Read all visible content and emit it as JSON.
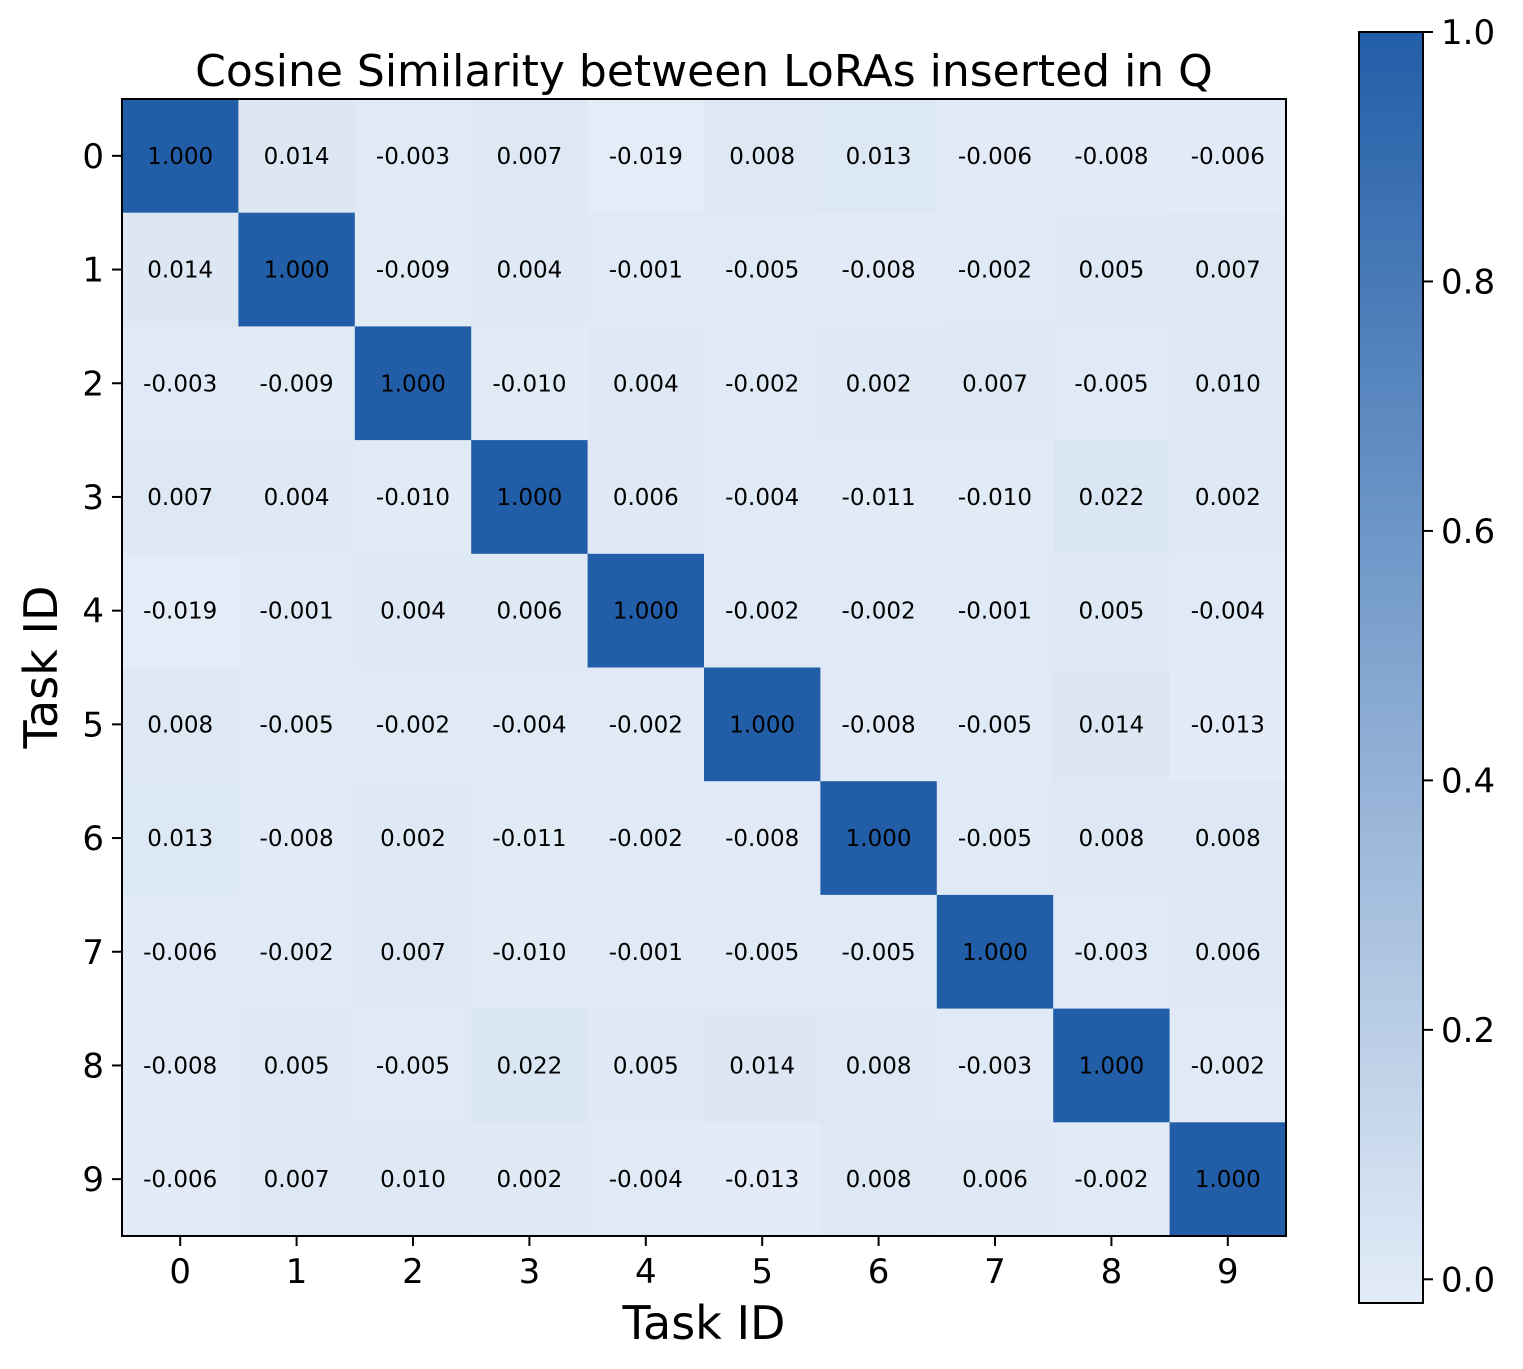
{
  "chart_data": {
    "type": "heatmap",
    "title": "Cosine Similarity between LoRAs inserted in Q",
    "xlabel": "Task ID",
    "ylabel": "Task ID",
    "x_categories": [
      "0",
      "1",
      "2",
      "3",
      "4",
      "5",
      "6",
      "7",
      "8",
      "9"
    ],
    "y_categories": [
      "0",
      "1",
      "2",
      "3",
      "4",
      "5",
      "6",
      "7",
      "8",
      "9"
    ],
    "values": [
      [
        1.0,
        0.014,
        -0.003,
        0.007,
        -0.019,
        0.008,
        0.013,
        -0.006,
        -0.008,
        -0.006
      ],
      [
        0.014,
        1.0,
        -0.009,
        0.004,
        -0.001,
        -0.005,
        -0.008,
        -0.002,
        0.005,
        0.007
      ],
      [
        -0.003,
        -0.009,
        1.0,
        -0.01,
        0.004,
        -0.002,
        0.002,
        0.007,
        -0.005,
        0.01
      ],
      [
        0.007,
        0.004,
        -0.01,
        1.0,
        0.006,
        -0.004,
        -0.011,
        -0.01,
        0.022,
        0.002
      ],
      [
        -0.019,
        -0.001,
        0.004,
        0.006,
        1.0,
        -0.002,
        -0.002,
        -0.001,
        0.005,
        -0.004
      ],
      [
        0.008,
        -0.005,
        -0.002,
        -0.004,
        -0.002,
        1.0,
        -0.008,
        -0.005,
        0.014,
        -0.013
      ],
      [
        0.013,
        -0.008,
        0.002,
        -0.011,
        -0.002,
        -0.008,
        1.0,
        -0.005,
        0.008,
        0.008
      ],
      [
        -0.006,
        -0.002,
        0.007,
        -0.01,
        -0.001,
        -0.005,
        -0.005,
        1.0,
        -0.003,
        0.006
      ],
      [
        -0.008,
        0.005,
        -0.005,
        0.022,
        0.005,
        0.014,
        0.008,
        -0.003,
        1.0,
        -0.002
      ],
      [
        -0.006,
        0.007,
        0.01,
        0.002,
        -0.004,
        -0.013,
        0.008,
        0.006,
        -0.002,
        1.0
      ]
    ],
    "cell_labels": [
      [
        "1.000",
        "0.014",
        "-0.003",
        "0.007",
        "-0.019",
        "0.008",
        "0.013",
        "-0.006",
        "-0.008",
        "-0.006"
      ],
      [
        "0.014",
        "1.000",
        "-0.009",
        "0.004",
        "-0.001",
        "-0.005",
        "-0.008",
        "-0.002",
        "0.005",
        "0.007"
      ],
      [
        "-0.003",
        "-0.009",
        "1.000",
        "-0.010",
        "0.004",
        "-0.002",
        "0.002",
        "0.007",
        "-0.005",
        "0.010"
      ],
      [
        "0.007",
        "0.004",
        "-0.010",
        "1.000",
        "0.006",
        "-0.004",
        "-0.011",
        "-0.010",
        "0.022",
        "0.002"
      ],
      [
        "-0.019",
        "-0.001",
        "0.004",
        "0.006",
        "1.000",
        "-0.002",
        "-0.002",
        "-0.001",
        "0.005",
        "-0.004"
      ],
      [
        "0.008",
        "-0.005",
        "-0.002",
        "-0.004",
        "-0.002",
        "1.000",
        "-0.008",
        "-0.005",
        "0.014",
        "-0.013"
      ],
      [
        "0.013",
        "-0.008",
        "0.002",
        "-0.011",
        "-0.002",
        "-0.008",
        "1.000",
        "-0.005",
        "0.008",
        "0.008"
      ],
      [
        "-0.006",
        "-0.002",
        "0.007",
        "-0.010",
        "-0.001",
        "-0.005",
        "-0.005",
        "1.000",
        "-0.003",
        "0.006"
      ],
      [
        "-0.008",
        "0.005",
        "-0.005",
        "0.022",
        "0.005",
        "0.014",
        "0.008",
        "-0.003",
        "1.000",
        "-0.002"
      ],
      [
        "-0.006",
        "0.007",
        "0.010",
        "0.002",
        "-0.004",
        "-0.013",
        "0.008",
        "0.006",
        "-0.002",
        "1.000"
      ]
    ],
    "colorbar": {
      "range": [
        -0.019,
        1.0
      ],
      "ticks": [
        0.0,
        0.2,
        0.4,
        0.6,
        0.8,
        1.0
      ],
      "tick_labels": [
        "0.0",
        "0.2",
        "0.4",
        "0.6",
        "0.8",
        "1.0"
      ],
      "color_low": "#e3ecf7",
      "color_high": "#225ea8"
    },
    "grid": false
  }
}
